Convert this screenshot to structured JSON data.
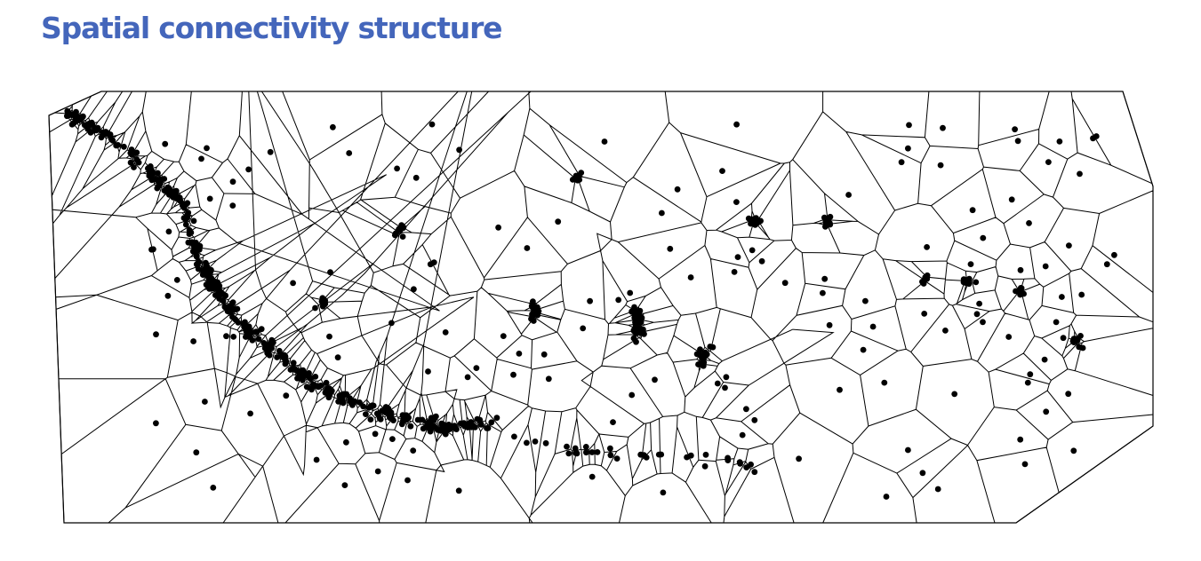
{
  "title": "Spatial connectivity structure",
  "colors": {
    "title": "#4466BB",
    "edges": "#000000",
    "points": "#000000",
    "background": "#FFFFFF"
  },
  "diagram": {
    "type": "voronoi-tessellation",
    "point_style": "filled-circle",
    "edge_style": "thin-line"
  }
}
